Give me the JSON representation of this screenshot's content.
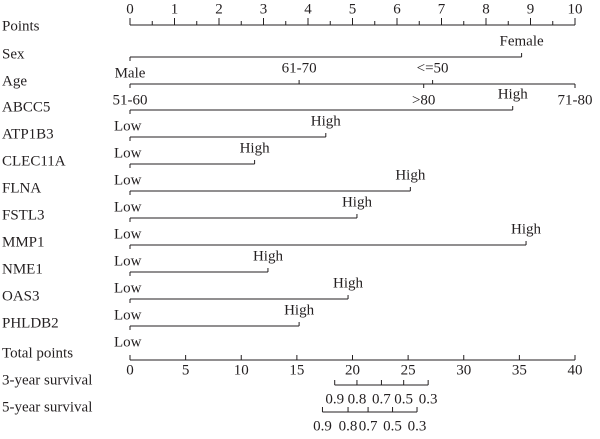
{
  "chart_data": {
    "type": "nomogram",
    "points": {
      "label": "Points",
      "xlim": [
        0,
        10
      ],
      "xticks": [
        0,
        1,
        2,
        3,
        4,
        5,
        6,
        7,
        8,
        9,
        10
      ],
      "minor_xticks": [
        0.5,
        1.5,
        2.5,
        3.5,
        4.5,
        5.5,
        6.5,
        7.5,
        8.5,
        9.5
      ]
    },
    "predictors": [
      {
        "name": "Sex",
        "levels": [
          {
            "label": "Male",
            "value": 0
          },
          {
            "label": "Female",
            "value": 8.8
          }
        ]
      },
      {
        "name": "Age",
        "levels": [
          {
            "label": "51-60",
            "value": 0
          },
          {
            "label": "61-70",
            "value": 3.8
          },
          {
            "label": "<=50",
            "value": 6.8
          },
          {
            "label": ">80",
            "value": 6.6
          },
          {
            "label": "71-80",
            "value": 10
          }
        ]
      },
      {
        "name": "ABCC5",
        "levels": [
          {
            "label": "Low",
            "value": 0
          },
          {
            "label": "High",
            "value": 8.6
          }
        ]
      },
      {
        "name": "ATP1B3",
        "levels": [
          {
            "label": "Low",
            "value": 0
          },
          {
            "label": "High",
            "value": 4.4
          }
        ]
      },
      {
        "name": "CLEC11A",
        "levels": [
          {
            "label": "Low",
            "value": 0
          },
          {
            "label": "High",
            "value": 2.8
          }
        ]
      },
      {
        "name": "FLNA",
        "levels": [
          {
            "label": "Low",
            "value": 0
          },
          {
            "label": "High",
            "value": 6.3
          }
        ]
      },
      {
        "name": "FSTL3",
        "levels": [
          {
            "label": "Low",
            "value": 0
          },
          {
            "label": "High",
            "value": 5.1
          }
        ]
      },
      {
        "name": "MMP1",
        "levels": [
          {
            "label": "Low",
            "value": 0
          },
          {
            "label": "High",
            "value": 8.9
          }
        ]
      },
      {
        "name": "NME1",
        "levels": [
          {
            "label": "Low",
            "value": 0
          },
          {
            "label": "High",
            "value": 3.1
          }
        ]
      },
      {
        "name": "OAS3",
        "levels": [
          {
            "label": "Low",
            "value": 0
          },
          {
            "label": "High",
            "value": 4.9
          }
        ]
      },
      {
        "name": "PHLDB2",
        "levels": [
          {
            "label": "Low",
            "value": 0
          },
          {
            "label": "High",
            "value": 3.8
          }
        ]
      }
    ],
    "total_points": {
      "label": "Total points",
      "xlim": [
        0,
        40
      ],
      "xticks": [
        0,
        5,
        10,
        15,
        20,
        25,
        30,
        35,
        40
      ]
    },
    "outcomes": [
      {
        "name": "3-year survival",
        "ticks": [
          {
            "value": 18.4,
            "label": "0.9"
          },
          {
            "value": 20.4,
            "label": "0.8"
          },
          {
            "value": 22.6,
            "label": "0.7"
          },
          {
            "value": 24.6,
            "label": "0.5"
          },
          {
            "value": 26.8,
            "label": "0.3"
          }
        ]
      },
      {
        "name": "5-year survival",
        "ticks": [
          {
            "value": 17.3,
            "label": "0.9"
          },
          {
            "value": 19.6,
            "label": "0.8"
          },
          {
            "value": 21.4,
            "label": "0.7"
          },
          {
            "value": 23.6,
            "label": "0.5"
          },
          {
            "value": 25.8,
            "label": "0.3"
          }
        ]
      }
    ]
  }
}
